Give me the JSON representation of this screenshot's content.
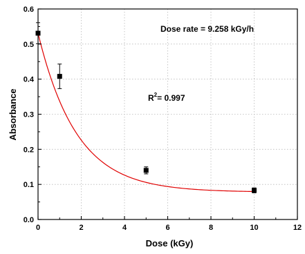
{
  "chart_data": {
    "type": "scatter",
    "title": "",
    "xlabel": "Dose (kGy)",
    "ylabel": "Absorbance",
    "xlim": [
      0,
      12
    ],
    "ylim": [
      0,
      0.6
    ],
    "xticks": [
      0,
      2,
      4,
      6,
      8,
      10,
      12
    ],
    "xtick_labels": [
      "0",
      "2",
      "4",
      "6",
      "8",
      "10",
      "12"
    ],
    "yticks": [
      0,
      0.1,
      0.2,
      0.3,
      0.4,
      0.5,
      0.6
    ],
    "ytick_labels": [
      "0.0",
      "0.1",
      "0.2",
      "0.3",
      "0.4",
      "0.5",
      "0.6"
    ],
    "grid": true,
    "series": [
      {
        "marker": "square",
        "color": "#000000",
        "points": [
          {
            "x": 0,
            "y": 0.531,
            "err": 0.03
          },
          {
            "x": 1,
            "y": 0.408,
            "err": 0.035
          },
          {
            "x": 5,
            "y": 0.14,
            "err": 0.01
          },
          {
            "x": 10,
            "y": 0.083,
            "err": 0.007
          }
        ]
      }
    ],
    "fit": {
      "type": "exponential",
      "color": "#e00000",
      "x_range": [
        0,
        10
      ],
      "y0": 0.078,
      "A": 0.453,
      "t": 1.79
    },
    "annotations": {
      "dose_rate": "Dose rate = 9.258 kGy/h",
      "r2_prefix": "R",
      "r2_sup": "2",
      "r2_value": "= 0.997"
    }
  }
}
